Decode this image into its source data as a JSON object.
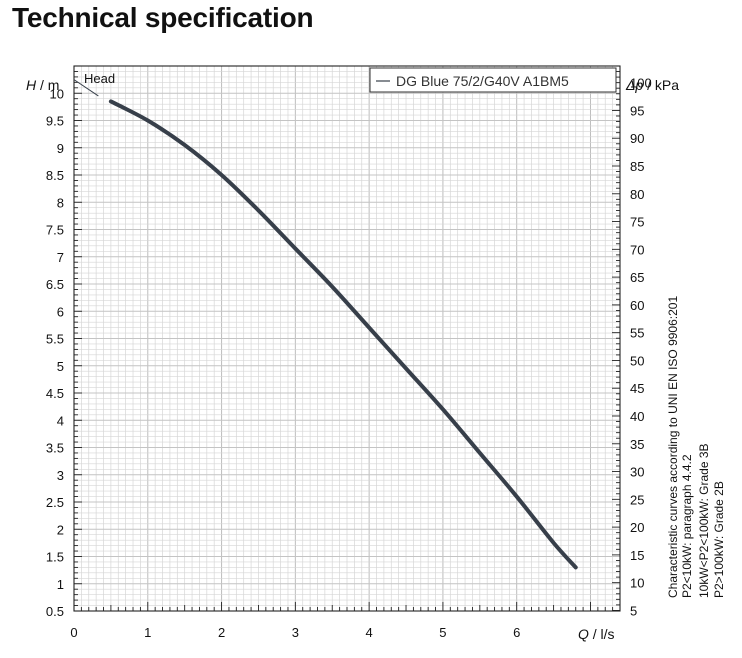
{
  "page": {
    "title": "Technical specification"
  },
  "chart_data": {
    "type": "line",
    "title": "",
    "series_label": "Head",
    "legend": {
      "entry": "DG Blue 75/2/G40V A1BM5",
      "placement": "top-right"
    },
    "left_axis": {
      "symbol": "H",
      "unit": "/ m",
      "range": [
        0.5,
        10.5
      ],
      "ticks": [
        0.5,
        1,
        1.5,
        2,
        2.5,
        3,
        3.5,
        4,
        4.5,
        5,
        5.5,
        6,
        6.5,
        7,
        7.5,
        8,
        8.5,
        9,
        9.5,
        10
      ],
      "tick_labels": [
        "0.5",
        "1",
        "1.5",
        "2",
        "2.5",
        "3",
        "3.5",
        "4",
        "4.5",
        "5",
        "5.5",
        "6",
        "6.5",
        "7",
        "7.5",
        "8",
        "8.5",
        "9",
        "9.5",
        "10"
      ]
    },
    "right_axis": {
      "symbol": "Δp",
      "unit": "/ kPa",
      "range": [
        4.9,
        103
      ],
      "ticks": [
        5,
        10,
        15,
        20,
        25,
        30,
        35,
        40,
        45,
        50,
        55,
        60,
        65,
        70,
        75,
        80,
        85,
        90,
        95,
        100
      ],
      "tick_labels": [
        "5",
        "10",
        "15",
        "20",
        "25",
        "30",
        "35",
        "40",
        "45",
        "50",
        "55",
        "60",
        "65",
        "70",
        "75",
        "80",
        "85",
        "90",
        "95",
        "100"
      ]
    },
    "x_axis": {
      "symbol": "Q",
      "unit": "/ l/s",
      "range": [
        0,
        7.4
      ],
      "ticks": [
        0,
        1,
        2,
        3,
        4,
        5,
        6
      ],
      "tick_labels": [
        "0",
        "1",
        "2",
        "3",
        "4",
        "5",
        "6"
      ]
    },
    "grid": true,
    "series": [
      {
        "name": "DG Blue 75/2/G40V A1BM5",
        "x": [
          0.5,
          1.0,
          1.5,
          2.0,
          2.5,
          3.0,
          3.5,
          4.0,
          4.5,
          5.0,
          5.5,
          6.0,
          6.5,
          6.8
        ],
        "y": [
          9.85,
          9.5,
          9.05,
          8.5,
          7.85,
          7.15,
          6.45,
          5.7,
          4.95,
          4.2,
          3.4,
          2.6,
          1.75,
          1.3
        ]
      }
    ],
    "extrapolation": {
      "x": [
        0.0,
        0.33
      ],
      "y": [
        10.25,
        9.95
      ]
    },
    "notes": [
      "Characteristic curves according to UNI EN ISO 9906:201",
      "P2<10kW:  paragraph 4.4.2",
      "10kW<P2<100kW: Grade 3B",
      "P2>100kW: Grade 2B"
    ],
    "colors": {
      "curve": "#373f4a",
      "grid": "#d6d6d6",
      "axis": "#222222"
    }
  }
}
